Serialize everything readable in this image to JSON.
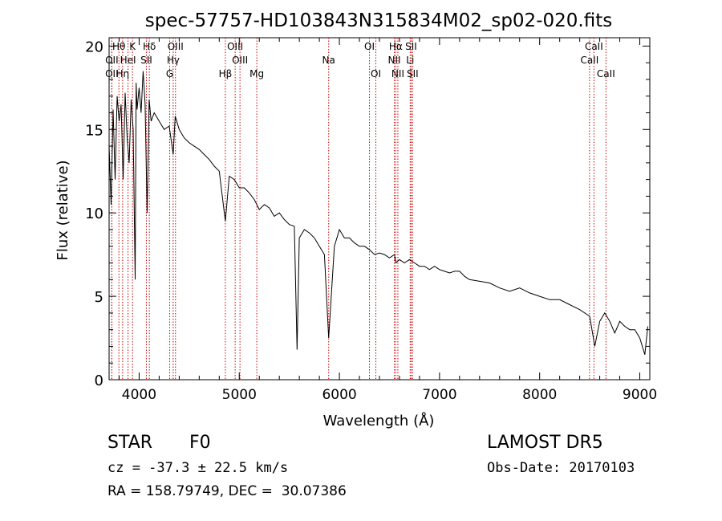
{
  "chart_data": {
    "type": "line",
    "title": "spec-57757-HD103843N315834M02_sp02-020.fits",
    "xlabel": "Wavelength (Å)",
    "ylabel": "Flux (relative)",
    "xlim": [
      3700,
      9100
    ],
    "ylim": [
      0,
      20.5
    ],
    "xticks": [
      4000,
      5000,
      6000,
      7000,
      8000,
      9000
    ],
    "yticks": [
      0,
      5,
      10,
      15,
      20
    ],
    "grid": false,
    "series": [
      {
        "x": [
          3700,
          3720,
          3740,
          3760,
          3780,
          3800,
          3820,
          3840,
          3860,
          3880,
          3900,
          3920,
          3940,
          3960,
          3970,
          3980,
          4000,
          4020,
          4040,
          4060,
          4080,
          4100,
          4120,
          4150,
          4200,
          4250,
          4300,
          4340,
          4360,
          4400,
          4450,
          4500,
          4550,
          4600,
          4650,
          4700,
          4750,
          4800,
          4861,
          4900,
          4950,
          5000,
          5050,
          5100,
          5150,
          5200,
          5250,
          5300,
          5350,
          5400,
          5450,
          5500,
          5550,
          5577,
          5600,
          5650,
          5700,
          5750,
          5800,
          5850,
          5893,
          5950,
          6000,
          6050,
          6100,
          6150,
          6200,
          6250,
          6300,
          6350,
          6400,
          6450,
          6500,
          6550,
          6563,
          6600,
          6650,
          6700,
          6750,
          6800,
          6850,
          6900,
          6950,
          7000,
          7050,
          7100,
          7150,
          7200,
          7250,
          7300,
          7400,
          7500,
          7600,
          7700,
          7800,
          7900,
          8000,
          8100,
          8200,
          8300,
          8400,
          8500,
          8550,
          8600,
          8650,
          8700,
          8750,
          8800,
          8850,
          8900,
          8950,
          9000,
          9050,
          9080
        ],
        "y": [
          14.0,
          10.5,
          16.2,
          12.0,
          17.0,
          15.5,
          16.5,
          12.0,
          17.2,
          14.5,
          13.0,
          16.8,
          15.0,
          6.0,
          17.8,
          16.2,
          17.5,
          16.0,
          18.5,
          16.5,
          10.0,
          16.8,
          15.5,
          16.0,
          15.5,
          15.0,
          15.2,
          13.5,
          15.8,
          15.0,
          14.5,
          14.2,
          14.0,
          13.8,
          13.5,
          13.2,
          12.8,
          12.5,
          9.5,
          12.2,
          12.0,
          11.5,
          11.5,
          11.2,
          10.8,
          10.2,
          10.5,
          10.3,
          9.8,
          10.0,
          9.6,
          9.3,
          9.2,
          1.8,
          8.5,
          9.0,
          8.8,
          8.5,
          8.0,
          7.5,
          2.5,
          8.0,
          9.0,
          8.5,
          8.5,
          8.2,
          8.0,
          8.0,
          7.8,
          7.5,
          7.6,
          7.5,
          7.3,
          7.5,
          7.0,
          7.2,
          7.0,
          7.2,
          7.0,
          6.8,
          6.8,
          6.6,
          6.8,
          6.6,
          6.5,
          6.4,
          6.5,
          6.5,
          6.2,
          6.0,
          5.9,
          5.8,
          5.5,
          5.3,
          5.5,
          5.2,
          5.0,
          4.8,
          4.8,
          4.5,
          4.2,
          3.8,
          2.0,
          3.5,
          4.0,
          3.5,
          2.8,
          3.5,
          3.2,
          3.0,
          3.0,
          2.5,
          1.5,
          3.2
        ]
      }
    ],
    "lines": [
      {
        "label": "Hθ",
        "x": 3798,
        "row": 1
      },
      {
        "label": "OII",
        "x": 3727,
        "row": 2
      },
      {
        "label": "OII",
        "x": 3727,
        "row": 3
      },
      {
        "label": "K",
        "x": 3934,
        "row": 1
      },
      {
        "label": "HeI",
        "x": 3889,
        "row": 2
      },
      {
        "label": "Hη",
        "x": 3835,
        "row": 3
      },
      {
        "label": "SII",
        "x": 4072,
        "row": 2
      },
      {
        "label": "Hδ",
        "x": 4102,
        "row": 1
      },
      {
        "label": "OIII",
        "x": 4363,
        "row": 1
      },
      {
        "label": "Hγ",
        "x": 4340,
        "row": 2
      },
      {
        "label": "G",
        "x": 4305,
        "row": 3
      },
      {
        "label": "OIII",
        "x": 4959,
        "row": 1
      },
      {
        "label": "OIII",
        "x": 5007,
        "row": 2
      },
      {
        "label": "Hβ",
        "x": 4861,
        "row": 3
      },
      {
        "label": "Mg",
        "x": 5175,
        "row": 3
      },
      {
        "label": "Na",
        "x": 5893,
        "row": 2
      },
      {
        "label": "OI",
        "x": 6300,
        "row": 1
      },
      {
        "label": "OI",
        "x": 6364,
        "row": 3
      },
      {
        "label": "Hα",
        "x": 6563,
        "row": 1
      },
      {
        "label": "SII",
        "x": 6716,
        "row": 1
      },
      {
        "label": "NII",
        "x": 6548,
        "row": 2
      },
      {
        "label": "Li",
        "x": 6707,
        "row": 2
      },
      {
        "label": "NII",
        "x": 6584,
        "row": 3
      },
      {
        "label": "SII",
        "x": 6731,
        "row": 3
      },
      {
        "label": "CaII",
        "x": 8542,
        "row": 1
      },
      {
        "label": "CaII",
        "x": 8498,
        "row": 2
      },
      {
        "label": "CaII",
        "x": 8662,
        "row": 3
      }
    ]
  },
  "info": {
    "class": "STAR",
    "subclass": "F0",
    "survey": "LAMOST DR5",
    "cz": "cz = -37.3 ± 22.5 km/s",
    "obs_date": "Obs-Date: 20170103",
    "radec": "RA = 158.79749, DEC =  30.07386"
  }
}
